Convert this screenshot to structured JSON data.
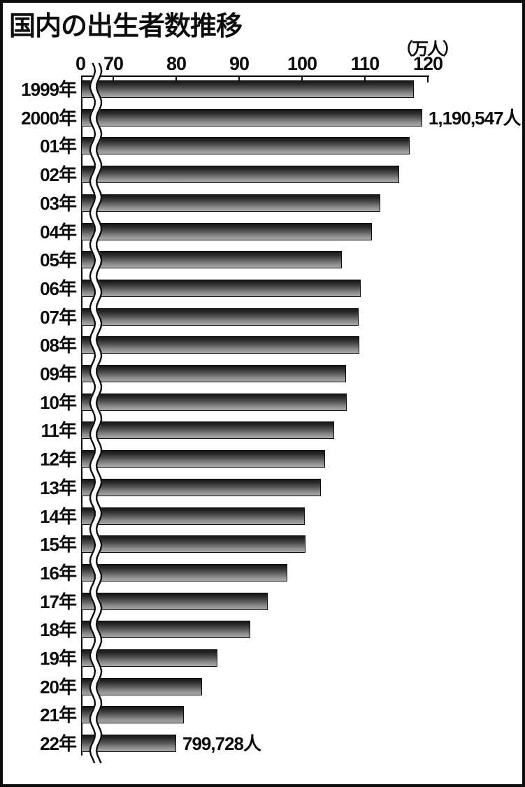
{
  "title": "国内の出生者数推移",
  "unit_label": "（万人）",
  "axis": {
    "tick_labels": [
      "0",
      "70",
      "80",
      "90",
      "100",
      "110",
      "120"
    ],
    "broken_axis": true
  },
  "chart_data": {
    "type": "bar",
    "orientation": "horizontal",
    "title": "国内の出生者数推移",
    "value_unit": "万人",
    "xticks": [
      0,
      70,
      80,
      90,
      100,
      110,
      120
    ],
    "xlim": [
      0,
      120
    ],
    "axis_break_between": [
      0,
      70
    ],
    "categories": [
      "1999年",
      "2000年",
      "01年",
      "02年",
      "03年",
      "04年",
      "05年",
      "06年",
      "07年",
      "08年",
      "09年",
      "10年",
      "11年",
      "12年",
      "13年",
      "14年",
      "15年",
      "16年",
      "17年",
      "18年",
      "19年",
      "20年",
      "21年",
      "22年"
    ],
    "values": [
      117.8,
      119.1,
      117.1,
      115.4,
      112.4,
      111.1,
      106.3,
      109.3,
      109.0,
      109.1,
      107.0,
      107.1,
      105.1,
      103.7,
      103.0,
      100.4,
      100.6,
      97.7,
      94.6,
      91.8,
      86.5,
      84.1,
      81.2,
      80.0
    ],
    "annotations": [
      {
        "category": "2000年",
        "text": "1,190,547人"
      },
      {
        "category": "22年",
        "text": "799,728人"
      }
    ]
  }
}
